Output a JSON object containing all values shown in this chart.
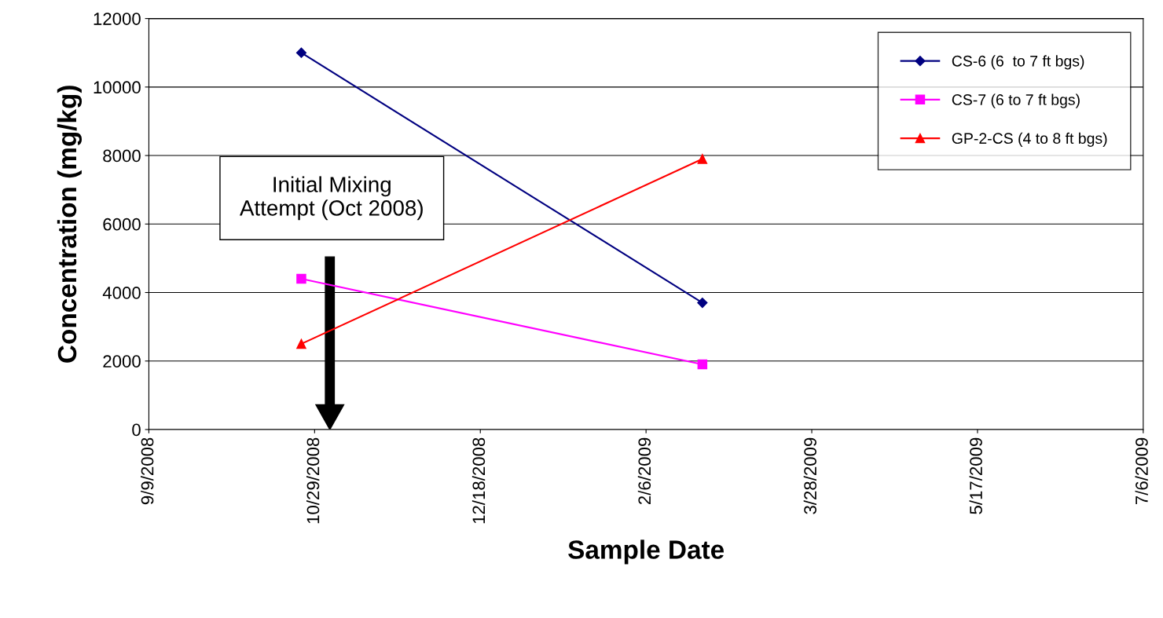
{
  "chart_data": {
    "type": "line",
    "xlabel": "Sample Date",
    "ylabel": "Concentration (mg/kg)",
    "series": [
      {
        "name": "CS-6 (6  to 7 ft bgs)",
        "color": "#000080",
        "marker": "diamond",
        "x": [
          "2008-10-25",
          "2009-02-23"
        ],
        "values": [
          11000,
          3700
        ]
      },
      {
        "name": "CS-7 (6 to 7 ft bgs)",
        "color": "#ff00ff",
        "marker": "square",
        "x": [
          "2008-10-25",
          "2009-02-23"
        ],
        "values": [
          4400,
          1900
        ]
      },
      {
        "name": "GP-2-CS (4 to 8 ft bgs)",
        "color": "#ff0000",
        "marker": "triangle",
        "x": [
          "2008-10-25",
          "2009-02-23"
        ],
        "values": [
          2500,
          7900
        ]
      }
    ],
    "annotations": [
      "Initial Mixing\nAttempt (Oct 2008)"
    ],
    "xlim": [
      "2008-09-09",
      "2009-07-06"
    ],
    "xticks": [
      {
        "value": "2008-09-09",
        "label": "9/9/2008"
      },
      {
        "value": "2008-10-29",
        "label": "10/29/2008"
      },
      {
        "value": "2008-12-18",
        "label": "12/18/2008"
      },
      {
        "value": "2009-02-06",
        "label": "2/6/2009"
      },
      {
        "value": "2009-03-28",
        "label": "3/28/2009"
      },
      {
        "value": "2009-05-17",
        "label": "5/17/2009"
      },
      {
        "value": "2009-07-06",
        "label": "7/6/2009"
      }
    ],
    "ylim": [
      0,
      12000
    ],
    "yticks": [
      0,
      2000,
      4000,
      6000,
      8000,
      10000,
      12000
    ],
    "grid": "y",
    "legend": "top right",
    "line_style": "solid"
  }
}
